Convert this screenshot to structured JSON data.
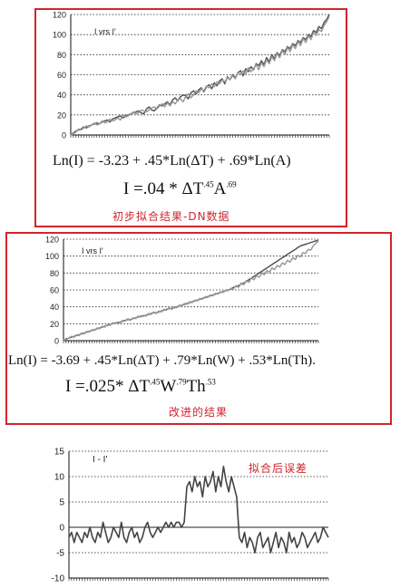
{
  "panel1": {
    "equation": "Ln(I) = -3.23 + .45*Ln(ΔT) + .69*Ln(A)",
    "formula": {
      "a": "I =.04 * ΔT",
      "a_exp": ".45",
      "b": "A",
      "b_exp": ".69"
    },
    "caption": "初步拟合结果-DN数据"
  },
  "panel2": {
    "equation": "Ln(I) = -3.69 + .45*Ln(ΔT) + .79*Ln(W) + .53*Ln(Th).",
    "formula": {
      "a": "I =.025* ΔT",
      "a_exp": ".45",
      "b": "W",
      "b_exp": ".79",
      "c": "Th",
      "c_exp": ".53"
    },
    "caption": "改进的结果"
  },
  "panel3": {
    "caption": "拟合后误差"
  },
  "chart_data": [
    {
      "type": "line",
      "legend_text": "I vrs I'",
      "ylim": [
        0,
        120
      ],
      "yticks": [
        0,
        20,
        40,
        60,
        80,
        100,
        120
      ],
      "grid": "horizontal-dotted",
      "series": [
        {
          "color": "#555555",
          "values": [
            0,
            2,
            4,
            5,
            6,
            8,
            7,
            9,
            10,
            11,
            12,
            11,
            13,
            14,
            15,
            13,
            16,
            17,
            18,
            19,
            17,
            19,
            20,
            21,
            22,
            23,
            24,
            22,
            21,
            26,
            28,
            25,
            24,
            27,
            30,
            29,
            31,
            33,
            30,
            35,
            37,
            34,
            38,
            40,
            39,
            36,
            42,
            44,
            41,
            45,
            47,
            43,
            48,
            50,
            46,
            52,
            49,
            54,
            56,
            51,
            58,
            55,
            60,
            57,
            62,
            64,
            59,
            66,
            63,
            68,
            65,
            71,
            69,
            74,
            70,
            77,
            73,
            80,
            76,
            82,
            79,
            85,
            83,
            88,
            86,
            91,
            89,
            94,
            92,
            97,
            95,
            100,
            98,
            104,
            102,
            108,
            106,
            112,
            115,
            120
          ]
        },
        {
          "color": "#9a9a9a",
          "values": [
            0,
            1,
            3,
            6,
            5,
            7,
            9,
            8,
            10,
            12,
            10,
            11,
            14,
            12,
            13,
            16,
            14,
            15,
            17,
            15,
            20,
            18,
            19,
            21,
            23,
            21,
            22,
            25,
            24,
            23,
            25,
            27,
            28,
            26,
            29,
            31,
            28,
            32,
            29,
            33,
            31,
            35,
            36,
            33,
            38,
            41,
            37,
            40,
            44,
            42,
            46,
            44,
            49,
            47,
            51,
            48,
            53,
            51,
            55,
            53,
            57,
            55,
            59,
            56,
            62,
            60,
            64,
            61,
            67,
            63,
            66,
            70,
            65,
            72,
            68,
            75,
            71,
            78,
            74,
            81,
            77,
            84,
            80,
            87,
            83,
            90,
            86,
            93,
            89,
            96,
            92,
            99,
            95,
            102,
            99,
            105,
            103,
            109,
            113,
            118
          ]
        }
      ]
    },
    {
      "type": "line",
      "legend_text": "I  vrs  I'",
      "ylim": [
        0,
        120
      ],
      "yticks": [
        0,
        20,
        40,
        60,
        80,
        100,
        120
      ],
      "grid": "horizontal-dotted",
      "series": [
        {
          "color": "#555555",
          "values": [
            0,
            2,
            3,
            4,
            5,
            6,
            7,
            8,
            9,
            10,
            11,
            12,
            13,
            14,
            15,
            16,
            17,
            18,
            19,
            20,
            21,
            21,
            22,
            23,
            24,
            25,
            25,
            26,
            27,
            28,
            29,
            29,
            30,
            31,
            32,
            33,
            33,
            34,
            35,
            36,
            37,
            38,
            38,
            39,
            40,
            41,
            42,
            43,
            44,
            45,
            46,
            47,
            48,
            49,
            50,
            51,
            52,
            53,
            54,
            55,
            56,
            57,
            58,
            59,
            60,
            61,
            63,
            64,
            65,
            67,
            68,
            70,
            72,
            74,
            76,
            78,
            80,
            82,
            84,
            86,
            88,
            90,
            92,
            94,
            96,
            98,
            100,
            102,
            104,
            106,
            108,
            110,
            112,
            113,
            114,
            115,
            116,
            117,
            118,
            119
          ]
        },
        {
          "color": "#9a9a9a",
          "values": [
            1,
            1,
            3,
            5,
            4,
            7,
            6,
            9,
            8,
            11,
            10,
            13,
            12,
            15,
            14,
            17,
            16,
            19,
            18,
            21,
            20,
            22,
            21,
            24,
            23,
            26,
            24,
            27,
            26,
            29,
            28,
            30,
            29,
            32,
            31,
            34,
            32,
            35,
            34,
            37,
            36,
            39,
            37,
            40,
            39,
            42,
            41,
            44,
            43,
            46,
            45,
            48,
            47,
            50,
            49,
            52,
            51,
            54,
            53,
            56,
            55,
            58,
            57,
            60,
            59,
            62,
            61,
            65,
            63,
            68,
            66,
            71,
            69,
            74,
            72,
            77,
            75,
            80,
            78,
            83,
            81,
            86,
            84,
            89,
            87,
            92,
            90,
            95,
            93,
            98,
            96,
            101,
            99,
            104,
            103,
            108,
            107,
            112,
            115,
            118
          ]
        }
      ]
    },
    {
      "type": "line",
      "legend_text": "I  -  I'",
      "ylim": [
        -10,
        15
      ],
      "yticks": [
        -10,
        -5,
        0,
        5,
        10,
        15
      ],
      "grid": "horizontal-dotted",
      "series": [
        {
          "color": "#444444",
          "values": [
            -2,
            -1,
            -3,
            -1,
            -2,
            -3,
            -1,
            -2,
            0,
            -2,
            -3,
            -1,
            -2,
            1,
            -1,
            -3,
            -2,
            0,
            -1,
            -2,
            1,
            -2,
            -3,
            -1,
            0,
            -2,
            -1,
            -3,
            -2,
            0,
            1,
            -1,
            -2,
            -1,
            0,
            -1,
            0,
            1,
            0,
            1,
            0,
            1,
            1,
            0,
            1,
            8,
            9,
            7,
            10,
            8,
            9,
            6,
            10,
            8,
            9,
            11,
            7,
            10,
            8,
            12,
            9,
            7,
            10,
            8,
            6,
            -2,
            -3,
            -1,
            -4,
            -2,
            -3,
            -5,
            -2,
            -1,
            -4,
            -3,
            -2,
            -5,
            -3,
            -1,
            -4,
            -2,
            -3,
            -5,
            -1,
            -3,
            -2,
            -4,
            -3,
            -1,
            -2,
            -4,
            -3,
            -2,
            -1,
            -3,
            -2,
            0,
            -1,
            -2
          ]
        }
      ]
    }
  ]
}
